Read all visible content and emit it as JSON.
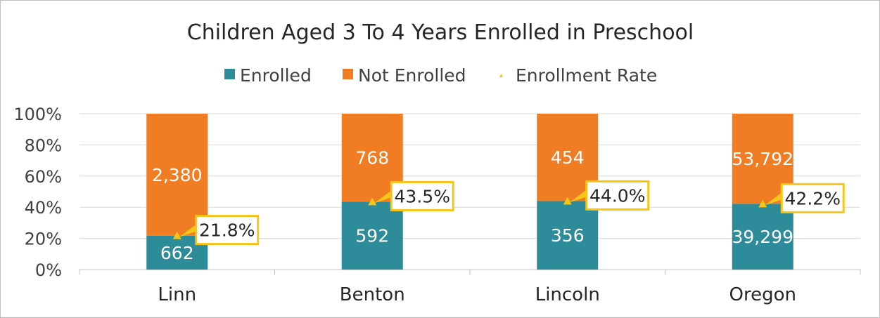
{
  "chart_data": {
    "type": "bar",
    "stacked": true,
    "normalized": true,
    "title": "Children Aged 3 To 4 Years Enrolled in Preschool",
    "categories": [
      "Linn",
      "Benton",
      "Lincoln",
      "Oregon"
    ],
    "series": [
      {
        "name": "Enrolled",
        "color": "#2E8B9A",
        "values": [
          662,
          592,
          356,
          39299
        ],
        "labels": [
          "662",
          "592",
          "356",
          "39,299"
        ]
      },
      {
        "name": "Not Enrolled",
        "color": "#F07C24",
        "values": [
          2380,
          768,
          454,
          53792
        ],
        "labels": [
          "2,380",
          "768",
          "454",
          "53,792"
        ]
      }
    ],
    "rate_series": {
      "name": "Enrollment Rate",
      "color": "#F5C518",
      "marker": "triangle",
      "values": [
        21.8,
        43.5,
        44.0,
        42.2
      ],
      "labels": [
        "21.8%",
        "43.5%",
        "44.0%",
        "42.2%"
      ]
    },
    "y_ticks": [
      "0%",
      "20%",
      "40%",
      "60%",
      "80%",
      "100%"
    ],
    "ylim": [
      0,
      100
    ],
    "grid": true,
    "legend": "top-center",
    "xlabel": "",
    "ylabel": ""
  }
}
